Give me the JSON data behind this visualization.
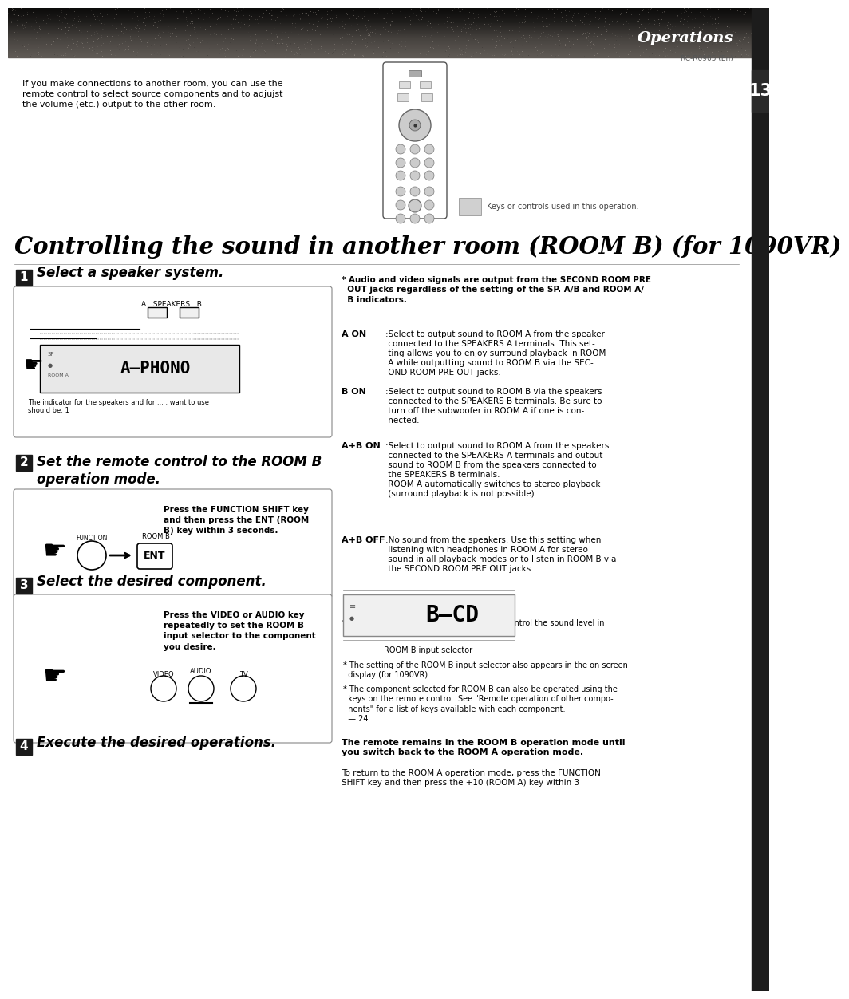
{
  "bg_color": "#ffffff",
  "header_text": "Operations",
  "page_num": "13",
  "model_code": "RC-R0905 (En)",
  "intro_text": "If you make connections to another room, you can use the\nremote control to select source components and to adjujst\nthe volume (etc.) output to the other room.",
  "keys_caption": "Keys or controls used in this operation.",
  "main_title": "Controlling the sound in another room (ROOM B)",
  "main_title_suffix": "(for 1090VR)",
  "step1_label": "1",
  "step1_text": "Select a speaker system.",
  "step2_label": "2",
  "step2_text": "Set the remote control to the ROOM B\noperation mode.",
  "step2_box_line1": "Press the FUNCTION SHIFT key",
  "step2_box_line2": "and then press the ENT (ROOM",
  "step2_box_line3": "B) key within 3 seconds.",
  "step3_label": "3",
  "step3_text": "Select the desired component.",
  "step3_box_line1": "Press the VIDEO or AUDIO key",
  "step3_box_line2": "repeatedly to set the ROOM B",
  "step3_box_line3": "input selector to the component",
  "step3_box_line4": "you desire.",
  "step4_label": "4",
  "step4_text": "Execute the desired operations.",
  "right_note": "* Audio and video signals are output from the SECOND ROOM PRE\n  OUT jacks regardless of the setting of the SP. A/B and ROOM A/\n  B indicators.",
  "aon_label": "A ON",
  "aon_text": ":Select to output sound to ROOM A from the speaker\n connected to the SPEAKERS A terminals. This set-\n ting allows you to enjoy surround playback in ROOM\n A while outputting sound to ROOM B via the SEC-\n OND ROOM PRE OUT jacks.",
  "bon_label": "B ON",
  "bon_text": ":Select to output sound to ROOM B via the speakers\n connected to the SPEAKERS B terminals. Be sure to\n turn off the subwoofer in ROOM A if one is con-\n nected.",
  "abOn_label": "A+B ON",
  "abOn_text": ":Select to output sound to ROOM A from the speakers\n connected to the SPEAKERS A terminals and output\n sound to ROOM B from the speakers connected to\n the SPEAKERS B terminals.\n ROOM A automatically switches to stereo playback\n (surround playback is not possible).",
  "abOff_label": "A+B OFF",
  "abOff_text": ":No sound from the speakers. Use this setting when\n listening with headphones in ROOM A for stereo\n sound in all playback modes or to listen in ROOM B via\n the SECOND ROOM PRE OUT jacks.",
  "mute_note": "* The MUTE and VOLUME +/- keys let you control the sound level in\n ROOM B.",
  "room_b_caption": "ROOM B input selector",
  "step3_note1": "* The setting of the ROOM B input selector also appears in the on screen\n  display (for 1090VR).",
  "step3_note2": "* The component selected for ROOM B can also be operated using the\n  keys on the remote control. See \"Remote operation of other compo-\n  nents\" for a list of keys available with each component.",
  "page_ref": "  — 24",
  "bottom_bold": "The remote remains in the ROOM B operation mode until\nyou switch back to the ROOM A operation mode.",
  "bottom_text": "To return to the ROOM A operation mode, press the FUNCTION\nSHIFT key and then press the +10 (ROOM A) key within 3"
}
